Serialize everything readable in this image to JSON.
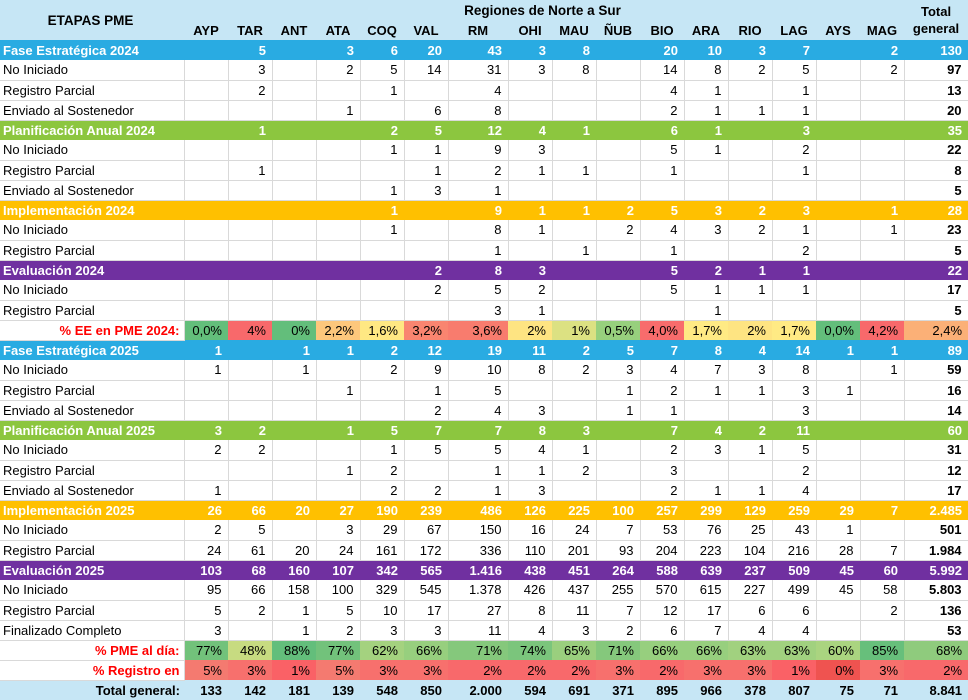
{
  "header": {
    "etapas": "ETAPAS PME",
    "regiones_title": "Regiones de Norte a Sur",
    "total_line1": "Total",
    "total_line2": "general",
    "columns": [
      "AYP",
      "TAR",
      "ANT",
      "ATA",
      "COQ",
      "VAL",
      "RM",
      "OHI",
      "MAU",
      "ÑUB",
      "BIO",
      "ARA",
      "RIO",
      "LAG",
      "AYS",
      "MAG"
    ]
  },
  "colors": {
    "band_blue": "#29ABE2",
    "band_green": "#8CC63F",
    "band_orange": "#FFC000",
    "band_purple": "#7030A0",
    "header_bg": "#C6E6F5",
    "grand_bg": "#C6E6F5",
    "label_red": "#FF0000",
    "grid": "#D9D9D9"
  },
  "rows": [
    {
      "type": "section",
      "color": "band_blue",
      "label": "Fase Estratégica 2024",
      "values": [
        "",
        "5",
        "",
        "3",
        "6",
        "20",
        "43",
        "3",
        "8",
        "",
        "20",
        "10",
        "3",
        "7",
        "",
        "2"
      ],
      "total": "130"
    },
    {
      "type": "detail",
      "label": "No Iniciado",
      "values": [
        "",
        "3",
        "",
        "2",
        "5",
        "14",
        "31",
        "3",
        "8",
        "",
        "14",
        "8",
        "2",
        "5",
        "",
        "2"
      ],
      "total": "97"
    },
    {
      "type": "detail",
      "label": "Registro Parcial",
      "values": [
        "",
        "2",
        "",
        "",
        "1",
        "",
        "4",
        "",
        "",
        "",
        "4",
        "1",
        "",
        "1",
        "",
        ""
      ],
      "total": "13"
    },
    {
      "type": "detail",
      "label": "Enviado al Sostenedor",
      "values": [
        "",
        "",
        "",
        "1",
        "",
        "6",
        "8",
        "",
        "",
        "",
        "2",
        "1",
        "1",
        "1",
        "",
        ""
      ],
      "total": "20"
    },
    {
      "type": "section",
      "color": "band_green",
      "label": "Planificación Anual 2024",
      "values": [
        "",
        "1",
        "",
        "",
        "2",
        "5",
        "12",
        "4",
        "1",
        "",
        "6",
        "1",
        "",
        "3",
        "",
        ""
      ],
      "total": "35"
    },
    {
      "type": "detail",
      "label": "No Iniciado",
      "values": [
        "",
        "",
        "",
        "",
        "1",
        "1",
        "9",
        "3",
        "",
        "",
        "5",
        "1",
        "",
        "2",
        "",
        ""
      ],
      "total": "22"
    },
    {
      "type": "detail",
      "label": "Registro Parcial",
      "values": [
        "",
        "1",
        "",
        "",
        "",
        "1",
        "2",
        "1",
        "1",
        "",
        "1",
        "",
        "",
        "1",
        "",
        ""
      ],
      "total": "8"
    },
    {
      "type": "detail",
      "label": "Enviado al Sostenedor",
      "values": [
        "",
        "",
        "",
        "",
        "1",
        "3",
        "1",
        "",
        "",
        "",
        "",
        "",
        "",
        "",
        "",
        ""
      ],
      "total": "5"
    },
    {
      "type": "section",
      "color": "band_orange",
      "label": "Implementación 2024",
      "values": [
        "",
        "",
        "",
        "",
        "1",
        "",
        "9",
        "1",
        "1",
        "2",
        "5",
        "3",
        "2",
        "3",
        "",
        "1"
      ],
      "total": "28"
    },
    {
      "type": "detail",
      "label": "No Iniciado",
      "values": [
        "",
        "",
        "",
        "",
        "1",
        "",
        "8",
        "1",
        "",
        "2",
        "4",
        "3",
        "2",
        "1",
        "",
        "1"
      ],
      "total": "23"
    },
    {
      "type": "detail",
      "label": "Registro Parcial",
      "values": [
        "",
        "",
        "",
        "",
        "",
        "",
        "1",
        "",
        "1",
        "",
        "1",
        "",
        "",
        "2",
        "",
        ""
      ],
      "total": "5"
    },
    {
      "type": "section",
      "color": "band_purple",
      "label": "Evaluación 2024",
      "values": [
        "",
        "",
        "",
        "",
        "",
        "2",
        "8",
        "3",
        "",
        "",
        "5",
        "2",
        "1",
        "1",
        "",
        ""
      ],
      "total": "22"
    },
    {
      "type": "detail",
      "label": "No Iniciado",
      "values": [
        "",
        "",
        "",
        "",
        "",
        "2",
        "5",
        "2",
        "",
        "",
        "5",
        "1",
        "1",
        "1",
        "",
        ""
      ],
      "total": "17"
    },
    {
      "type": "detail",
      "label": "Registro Parcial",
      "values": [
        "",
        "",
        "",
        "",
        "",
        "",
        "3",
        "1",
        "",
        "",
        "",
        "1",
        "",
        "",
        "",
        ""
      ],
      "total": "5"
    },
    {
      "type": "pct",
      "label": "% EE en PME 2024:",
      "values": [
        {
          "v": "0,0%",
          "bg": "#63BE7B"
        },
        {
          "v": "4%",
          "bg": "#F8696B"
        },
        {
          "v": "0%",
          "bg": "#63BE7B"
        },
        {
          "v": "2,2%",
          "bg": "#FDC77C"
        },
        {
          "v": "1,6%",
          "bg": "#FFE883"
        },
        {
          "v": "3,2%",
          "bg": "#F98570"
        },
        {
          "v": "3,6%",
          "bg": "#F87C6E"
        },
        {
          "v": "2%",
          "bg": "#FEE482"
        },
        {
          "v": "1%",
          "bg": "#DCE182"
        },
        {
          "v": "0,5%",
          "bg": "#97D07D"
        },
        {
          "v": "4,0%",
          "bg": "#F86C6C"
        },
        {
          "v": "1,7%",
          "bg": "#FFEA84"
        },
        {
          "v": "2%",
          "bg": "#FEE482"
        },
        {
          "v": "1,7%",
          "bg": "#FFEA84"
        },
        {
          "v": "0,0%",
          "bg": "#63BE7B"
        },
        {
          "v": "4,2%",
          "bg": "#F8696B"
        }
      ],
      "total": {
        "v": "2,4%",
        "bg": "#FBB077"
      }
    },
    {
      "type": "section",
      "color": "band_blue",
      "label": "Fase Estratégica 2025",
      "values": [
        "1",
        "",
        "1",
        "1",
        "2",
        "12",
        "19",
        "11",
        "2",
        "5",
        "7",
        "8",
        "4",
        "14",
        "1",
        "1"
      ],
      "total": "89"
    },
    {
      "type": "detail",
      "label": "No Iniciado",
      "values": [
        "1",
        "",
        "1",
        "",
        "2",
        "9",
        "10",
        "8",
        "2",
        "3",
        "4",
        "7",
        "3",
        "8",
        "",
        "1"
      ],
      "total": "59"
    },
    {
      "type": "detail",
      "label": "Registro Parcial",
      "values": [
        "",
        "",
        "",
        "1",
        "",
        "1",
        "5",
        "",
        "",
        "1",
        "2",
        "1",
        "1",
        "3",
        "1",
        ""
      ],
      "total": "16"
    },
    {
      "type": "detail",
      "label": "Enviado al Sostenedor",
      "values": [
        "",
        "",
        "",
        "",
        "",
        "2",
        "4",
        "3",
        "",
        "1",
        "1",
        "",
        "",
        "3",
        "",
        ""
      ],
      "total": "14"
    },
    {
      "type": "section",
      "color": "band_green",
      "label": "Planificación Anual 2025",
      "values": [
        "3",
        "2",
        "",
        "1",
        "5",
        "7",
        "7",
        "8",
        "3",
        "",
        "7",
        "4",
        "2",
        "11",
        "",
        ""
      ],
      "total": "60"
    },
    {
      "type": "detail",
      "label": "No Iniciado",
      "values": [
        "2",
        "2",
        "",
        "",
        "1",
        "5",
        "5",
        "4",
        "1",
        "",
        "2",
        "3",
        "1",
        "5",
        "",
        ""
      ],
      "total": "31"
    },
    {
      "type": "detail",
      "label": "Registro Parcial",
      "values": [
        "",
        "",
        "",
        "1",
        "2",
        "",
        "1",
        "1",
        "2",
        "",
        "3",
        "",
        "",
        "2",
        "",
        ""
      ],
      "total": "12"
    },
    {
      "type": "detail",
      "label": "Enviado al Sostenedor",
      "values": [
        "1",
        "",
        "",
        "",
        "2",
        "2",
        "1",
        "3",
        "",
        "",
        "2",
        "1",
        "1",
        "4",
        "",
        ""
      ],
      "total": "17"
    },
    {
      "type": "section",
      "color": "band_orange",
      "label": "Implementación 2025",
      "values": [
        "26",
        "66",
        "20",
        "27",
        "190",
        "239",
        "486",
        "126",
        "225",
        "100",
        "257",
        "299",
        "129",
        "259",
        "29",
        "7"
      ],
      "total": "2.485"
    },
    {
      "type": "detail",
      "label": "No Iniciado",
      "values": [
        "2",
        "5",
        "",
        "3",
        "29",
        "67",
        "150",
        "16",
        "24",
        "7",
        "53",
        "76",
        "25",
        "43",
        "1",
        ""
      ],
      "total": "501"
    },
    {
      "type": "detail",
      "label": "Registro Parcial",
      "values": [
        "24",
        "61",
        "20",
        "24",
        "161",
        "172",
        "336",
        "110",
        "201",
        "93",
        "204",
        "223",
        "104",
        "216",
        "28",
        "7"
      ],
      "total": "1.984"
    },
    {
      "type": "section",
      "color": "band_purple",
      "label": "Evaluación 2025",
      "values": [
        "103",
        "68",
        "160",
        "107",
        "342",
        "565",
        "1.416",
        "438",
        "451",
        "264",
        "588",
        "639",
        "237",
        "509",
        "45",
        "60"
      ],
      "total": "5.992"
    },
    {
      "type": "detail",
      "label": "No Iniciado",
      "values": [
        "95",
        "66",
        "158",
        "100",
        "329",
        "545",
        "1.378",
        "426",
        "437",
        "255",
        "570",
        "615",
        "227",
        "499",
        "45",
        "58"
      ],
      "total": "5.803"
    },
    {
      "type": "detail",
      "label": "Registro Parcial",
      "values": [
        "5",
        "2",
        "1",
        "5",
        "10",
        "17",
        "27",
        "8",
        "11",
        "7",
        "12",
        "17",
        "6",
        "6",
        "",
        "2"
      ],
      "total": "136"
    },
    {
      "type": "detail",
      "label": "Finalizado Completo",
      "values": [
        "3",
        "",
        "1",
        "2",
        "3",
        "3",
        "11",
        "4",
        "3",
        "2",
        "6",
        "7",
        "4",
        "4",
        "",
        ""
      ],
      "total": "53"
    },
    {
      "type": "pct",
      "label": "% PME al día:",
      "values": [
        {
          "v": "77%",
          "bg": "#72C27B"
        },
        {
          "v": "48%",
          "bg": "#C7DB81"
        },
        {
          "v": "88%",
          "bg": "#63BE7B"
        },
        {
          "v": "77%",
          "bg": "#72C27B"
        },
        {
          "v": "62%",
          "bg": "#A4D27F"
        },
        {
          "v": "66%",
          "bg": "#97CF7E"
        },
        {
          "v": "71%",
          "bg": "#85C87C"
        },
        {
          "v": "74%",
          "bg": "#7BC57C"
        },
        {
          "v": "65%",
          "bg": "#9ACF7E"
        },
        {
          "v": "71%",
          "bg": "#85C87C"
        },
        {
          "v": "66%",
          "bg": "#97CF7E"
        },
        {
          "v": "66%",
          "bg": "#97CF7E"
        },
        {
          "v": "63%",
          "bg": "#A1D17F"
        },
        {
          "v": "63%",
          "bg": "#A1D17F"
        },
        {
          "v": "60%",
          "bg": "#AAD480"
        },
        {
          "v": "85%",
          "bg": "#67BF7B"
        }
      ],
      "total": {
        "v": "68%",
        "bg": "#8FCB7D"
      }
    },
    {
      "type": "pct",
      "label": "% Registro en",
      "values": [
        {
          "v": "5%",
          "bg": "#F47A70"
        },
        {
          "v": "3%",
          "bg": "#F7706D"
        },
        {
          "v": "1%",
          "bg": "#FA6166"
        },
        {
          "v": "5%",
          "bg": "#F47A70"
        },
        {
          "v": "3%",
          "bg": "#F7706D"
        },
        {
          "v": "3%",
          "bg": "#F7706D"
        },
        {
          "v": "2%",
          "bg": "#F8696B"
        },
        {
          "v": "2%",
          "bg": "#F8696B"
        },
        {
          "v": "2%",
          "bg": "#F8696B"
        },
        {
          "v": "3%",
          "bg": "#F7706D"
        },
        {
          "v": "2%",
          "bg": "#F8696B"
        },
        {
          "v": "3%",
          "bg": "#F7706D"
        },
        {
          "v": "3%",
          "bg": "#F7706D"
        },
        {
          "v": "1%",
          "bg": "#FA6166"
        },
        {
          "v": "0%",
          "bg": "#EF5350"
        },
        {
          "v": "3%",
          "bg": "#F7706D"
        }
      ],
      "total": {
        "v": "2%",
        "bg": "#F8696B"
      }
    },
    {
      "type": "grand",
      "label": "Total general:",
      "values": [
        "133",
        "142",
        "181",
        "139",
        "548",
        "850",
        "2.000",
        "594",
        "691",
        "371",
        "895",
        "966",
        "378",
        "807",
        "75",
        "71"
      ],
      "total": "8.841"
    }
  ]
}
